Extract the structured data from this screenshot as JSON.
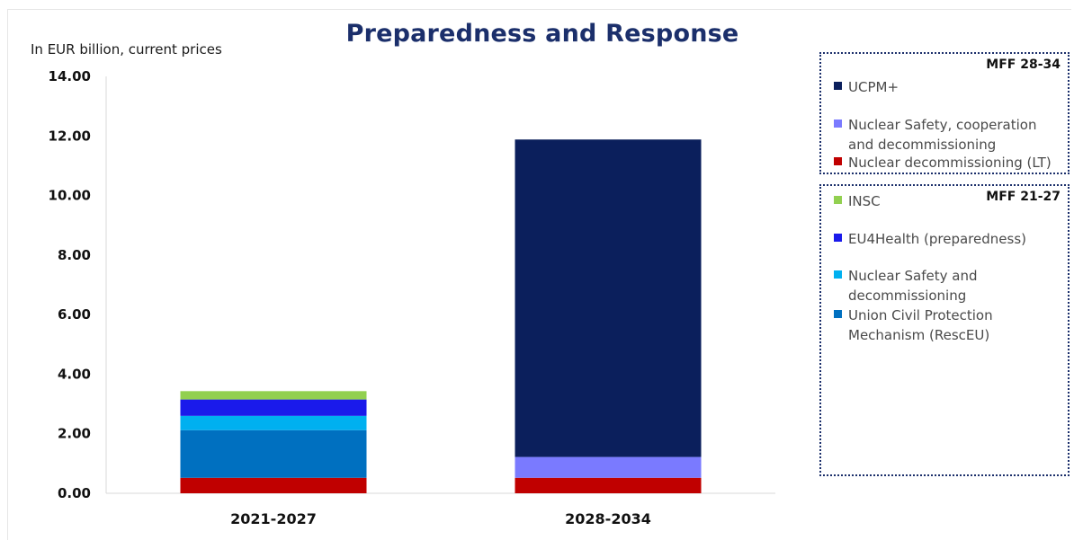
{
  "title": "Preparedness and Response",
  "unit_label": "In EUR billion, current prices",
  "chart_data": {
    "type": "bar",
    "stacked": true,
    "categories": [
      "2021-2027",
      "2028-2034"
    ],
    "ylim": [
      0,
      14
    ],
    "yticks": [
      "0.00",
      "2.00",
      "4.00",
      "6.00",
      "8.00",
      "10.00",
      "12.00",
      "14.00"
    ],
    "grid": false,
    "legend_position": "right",
    "series": [
      {
        "name": "Nuclear decommissioning (LT)",
        "color": "#c00000",
        "values": [
          0.52,
          0.52
        ]
      },
      {
        "name": "Union Civil Protection Mechanism (RescEU)",
        "color": "#0070c0",
        "values": [
          1.6,
          0
        ]
      },
      {
        "name": "Nuclear Safety and decommissioning",
        "color": "#00b0f0",
        "values": [
          0.48,
          0
        ]
      },
      {
        "name": "EU4Health (preparedness)",
        "color": "#1a1aeb",
        "values": [
          0.55,
          0
        ]
      },
      {
        "name": "INSC",
        "color": "#92d050",
        "values": [
          0.28,
          0
        ]
      },
      {
        "name": "Nuclear Safety, cooperation and decommissioning",
        "color": "#7a7aff",
        "values": [
          0,
          0.7
        ]
      },
      {
        "name": "UCPM+",
        "color": "#0b1f5c",
        "values": [
          0,
          10.66
        ]
      }
    ]
  },
  "legend": {
    "mff_28_34": {
      "heading": "MFF 28-34",
      "items": [
        {
          "label": "UCPM+",
          "color": "#0b1f5c"
        },
        {
          "label": "Nuclear Safety, cooperation and decommissioning",
          "color": "#7a7aff"
        },
        {
          "label": "Nuclear decommissioning (LT)",
          "color": "#c00000"
        }
      ]
    },
    "mff_21_27": {
      "heading": "MFF 21-27",
      "items": [
        {
          "label": "INSC",
          "color": "#92d050"
        },
        {
          "label": "EU4Health (preparedness)",
          "color": "#1a1aeb"
        },
        {
          "label": "Nuclear Safety and decommissioning",
          "color": "#00b0f0"
        },
        {
          "label": "Union Civil Protection Mechanism (RescEU)",
          "color": "#0070c0"
        }
      ]
    }
  }
}
